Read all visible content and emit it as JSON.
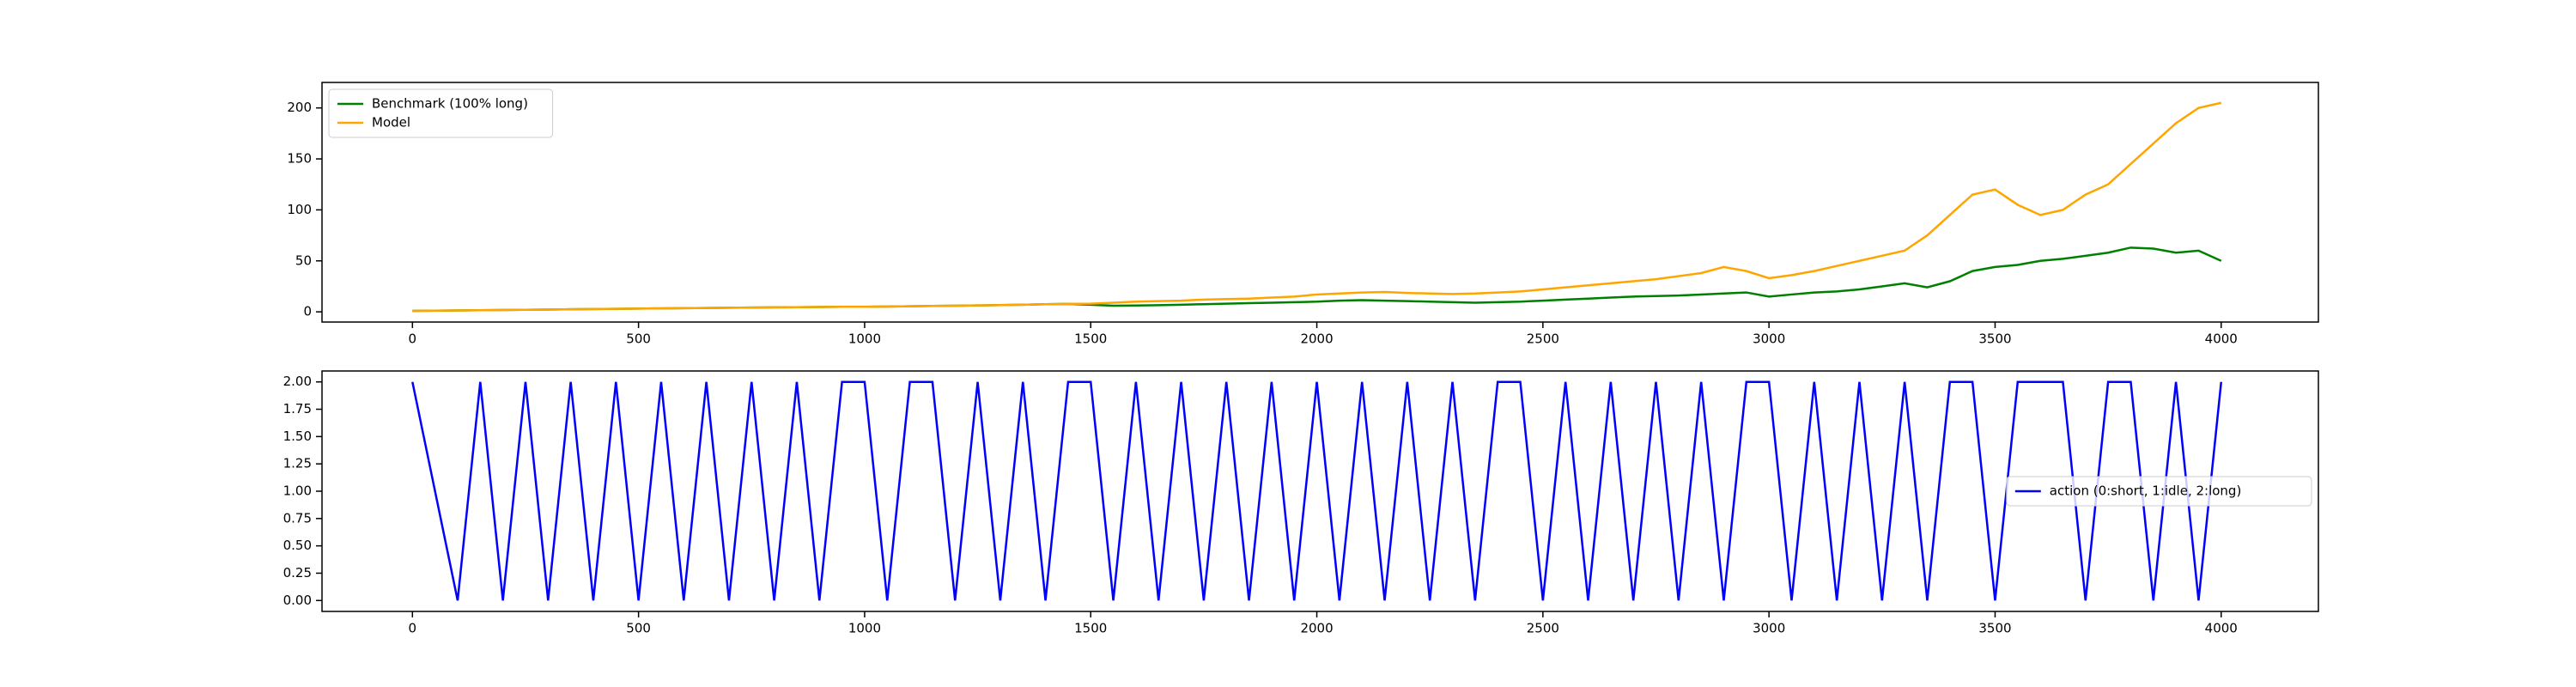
{
  "chart_data": [
    {
      "type": "line",
      "x": [
        0,
        50,
        100,
        150,
        200,
        250,
        300,
        350,
        400,
        450,
        500,
        550,
        600,
        650,
        700,
        750,
        800,
        850,
        900,
        950,
        1000,
        1050,
        1100,
        1150,
        1200,
        1250,
        1300,
        1350,
        1400,
        1450,
        1500,
        1550,
        1600,
        1650,
        1700,
        1750,
        1800,
        1850,
        1900,
        1950,
        2000,
        2050,
        2100,
        2150,
        2200,
        2250,
        2300,
        2350,
        2400,
        2450,
        2500,
        2550,
        2600,
        2650,
        2700,
        2750,
        2800,
        2850,
        2900,
        2950,
        3000,
        3050,
        3100,
        3150,
        3200,
        3250,
        3300,
        3350,
        3400,
        3450,
        3500,
        3550,
        3600,
        3650,
        3700,
        3750,
        3800,
        3850,
        3900,
        3950,
        4000
      ],
      "series": [
        {
          "name": "Benchmark (100% long)",
          "color": "#008000",
          "values": [
            1,
            1.2,
            1.4,
            1.6,
            1.8,
            2,
            2.2,
            2.5,
            2.7,
            3,
            3.2,
            3.4,
            3.6,
            3.8,
            4,
            4.2,
            4.4,
            4.5,
            4.7,
            4.9,
            5,
            5.2,
            5.5,
            5.8,
            6,
            6.3,
            6.6,
            7,
            7.5,
            7.8,
            7,
            6,
            6.2,
            6.5,
            7,
            7.5,
            8,
            8.5,
            9,
            9.5,
            10,
            11,
            11.5,
            11,
            10.5,
            10,
            9.5,
            9,
            9.5,
            10,
            11,
            12,
            13,
            14,
            15,
            15.5,
            16,
            17,
            18,
            19,
            15,
            17,
            19,
            20,
            22,
            25,
            28,
            24,
            30,
            40,
            44,
            46,
            50,
            52,
            55,
            58,
            63,
            62,
            58,
            60,
            50
          ]
        },
        {
          "name": "Model",
          "color": "#ffa500",
          "values": [
            1,
            1.2,
            1.4,
            1.6,
            1.8,
            2,
            2.2,
            2.5,
            2.7,
            3,
            3.2,
            3.4,
            3.6,
            3.8,
            4,
            4.2,
            4.4,
            4.5,
            4.7,
            4.9,
            5,
            5.2,
            5.5,
            5.8,
            6,
            6.3,
            6.6,
            7,
            7.5,
            7.8,
            8,
            9,
            10,
            10.5,
            11,
            12,
            12.5,
            13,
            14,
            15,
            17,
            18,
            19,
            19.5,
            18.5,
            18,
            17.5,
            18,
            19,
            20,
            22,
            24,
            26,
            28,
            30,
            32,
            35,
            38,
            44,
            40,
            33,
            36,
            40,
            45,
            50,
            55,
            60,
            75,
            95,
            115,
            120,
            105,
            95,
            100,
            115,
            125,
            145,
            165,
            185,
            200,
            205
          ]
        }
      ],
      "xlim": [
        -200,
        4215
      ],
      "xticks": [
        0,
        500,
        1000,
        1500,
        2000,
        2500,
        3000,
        3500,
        4000
      ],
      "ylim": [
        -10,
        225
      ],
      "yticks": [
        0,
        50,
        100,
        150,
        200
      ],
      "legend": "upper left"
    },
    {
      "type": "line",
      "x": [
        0,
        50,
        100,
        150,
        200,
        250,
        300,
        350,
        400,
        450,
        500,
        550,
        600,
        650,
        700,
        750,
        800,
        850,
        900,
        950,
        1000,
        1050,
        1100,
        1150,
        1200,
        1250,
        1300,
        1350,
        1400,
        1450,
        1500,
        1550,
        1600,
        1650,
        1700,
        1750,
        1800,
        1850,
        1900,
        1950,
        2000,
        2050,
        2100,
        2150,
        2200,
        2250,
        2300,
        2350,
        2400,
        2450,
        2500,
        2550,
        2600,
        2650,
        2700,
        2750,
        2800,
        2850,
        2900,
        2950,
        3000,
        3050,
        3100,
        3150,
        3200,
        3250,
        3300,
        3350,
        3400,
        3450,
        3500,
        3550,
        3600,
        3650,
        3700,
        3750,
        3800,
        3850,
        3900,
        3950,
        4000
      ],
      "series": [
        {
          "name": "action (0:short, 1:idle, 2:long)",
          "color": "#0000ff",
          "values": [
            2,
            1,
            0,
            2,
            0,
            2,
            0,
            2,
            0,
            2,
            0,
            2,
            0,
            2,
            0,
            2,
            0,
            2,
            0,
            2,
            2,
            0,
            2,
            2,
            0,
            2,
            0,
            2,
            0,
            2,
            2,
            0,
            2,
            0,
            2,
            0,
            2,
            0,
            2,
            0,
            2,
            0,
            2,
            0,
            2,
            0,
            2,
            0,
            2,
            2,
            0,
            2,
            0,
            2,
            0,
            2,
            0,
            2,
            0,
            2,
            2,
            0,
            2,
            0,
            2,
            0,
            2,
            0,
            2,
            2,
            0,
            2,
            2,
            2,
            0,
            2,
            2,
            0,
            2,
            0,
            2
          ]
        }
      ],
      "xlim": [
        -200,
        4215
      ],
      "xticks": [
        0,
        500,
        1000,
        1500,
        2000,
        2500,
        3000,
        3500,
        4000
      ],
      "ylim": [
        -0.1,
        2.1
      ],
      "yticks": [
        {
          "value": 0,
          "label": "0.00"
        },
        {
          "value": 0.25,
          "label": "0.25"
        },
        {
          "value": 0.5,
          "label": "0.50"
        },
        {
          "value": 0.75,
          "label": "0.75"
        },
        {
          "value": 1,
          "label": "1.00"
        },
        {
          "value": 1.25,
          "label": "1.25"
        },
        {
          "value": 1.5,
          "label": "1.50"
        },
        {
          "value": 1.75,
          "label": "1.75"
        },
        {
          "value": 2,
          "label": "2.00"
        }
      ],
      "legend": "center right"
    }
  ]
}
